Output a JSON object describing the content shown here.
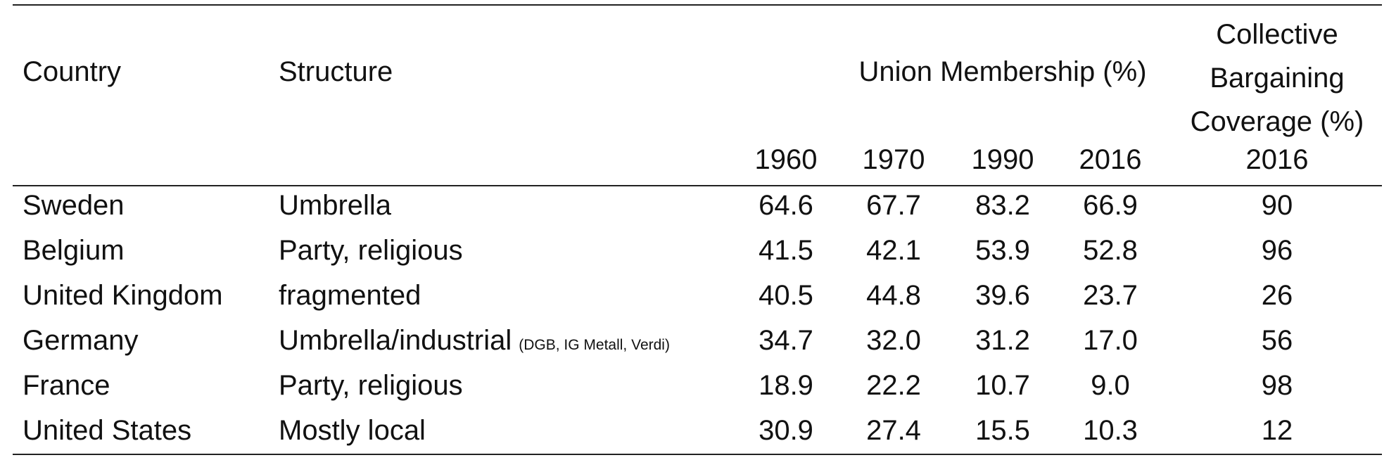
{
  "table": {
    "headers": {
      "country": "Country",
      "structure": "Structure",
      "union_membership": "Union Membership (%)",
      "coverage": "Collective Bargaining Coverage (%)",
      "coverage_lines": [
        "Collective",
        "Bargaining",
        "Coverage (%)"
      ],
      "years": [
        "1960",
        "1970",
        "1990",
        "2016"
      ],
      "coverage_year": "2016"
    },
    "rows": [
      {
        "country": "Sweden",
        "structure": "Umbrella",
        "structure_note": "",
        "membership": [
          "64.6",
          "67.7",
          "83.2",
          "66.9"
        ],
        "coverage": "90"
      },
      {
        "country": "Belgium",
        "structure": "Party, religious",
        "structure_note": "",
        "membership": [
          "41.5",
          "42.1",
          "53.9",
          "52.8"
        ],
        "coverage": "96"
      },
      {
        "country": "United Kingdom",
        "structure": "fragmented",
        "structure_note": "",
        "membership": [
          "40.5",
          "44.8",
          "39.6",
          "23.7"
        ],
        "coverage": "26"
      },
      {
        "country": "Germany",
        "structure": "Umbrella/industrial",
        "structure_note": "(DGB, IG Metall, Verdi)",
        "membership": [
          "34.7",
          "32.0",
          "31.2",
          "17.0"
        ],
        "coverage": "56"
      },
      {
        "country": "France",
        "structure": "Party, religious",
        "structure_note": "",
        "membership": [
          "18.9",
          "22.2",
          "10.7",
          "9.0"
        ],
        "coverage": "98"
      },
      {
        "country": "United States",
        "structure": "Mostly local",
        "structure_note": "",
        "membership": [
          "30.9",
          "27.4",
          "15.5",
          "10.3"
        ],
        "coverage": "12"
      }
    ]
  }
}
